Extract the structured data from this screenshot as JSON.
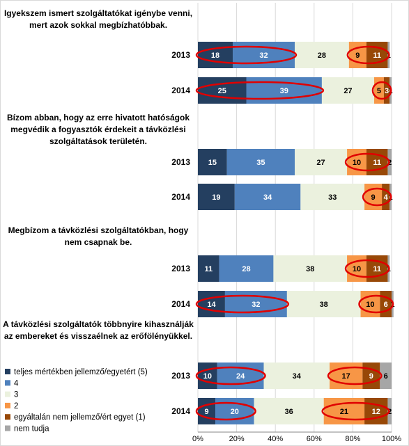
{
  "chart_data": {
    "type": "bar",
    "stacked": true,
    "orientation": "horizontal",
    "xlim": [
      0,
      100
    ],
    "x_ticks": [
      "0%",
      "20%",
      "40%",
      "60%",
      "80%",
      "100%"
    ],
    "grid": true,
    "legend_position": "left-bottom",
    "series": [
      {
        "name": "teljes mértékben jellemző/egyetért (5)",
        "color": "#243F60",
        "label_color": "#ffffff"
      },
      {
        "name": "4",
        "color": "#4F81BD",
        "label_color": "#ffffff"
      },
      {
        "name": "3",
        "color": "#EBF1DE",
        "label_color": "#000000"
      },
      {
        "name": "2",
        "color": "#F79646",
        "label_color": "#000000"
      },
      {
        "name": "egyáltalán nem jellemző/ért egyet (1)",
        "color": "#984807",
        "label_color": "#ffffff"
      },
      {
        "name": "nem tudja",
        "color": "#A6A6A6",
        "label_color": "#000000"
      }
    ],
    "groups": [
      {
        "question": [
          "Igyekszem ismert szolgáltatókat igénybe venni,",
          "mert azok sokkal megbízhatóbbak."
        ],
        "bars": [
          {
            "year": "2013",
            "values": [
              18,
              32,
              28,
              9,
              11,
              1
            ],
            "highlights": [
              [
                0,
                1
              ],
              [
                3,
                4
              ]
            ]
          },
          {
            "year": "2014",
            "values": [
              25,
              39,
              27,
              5,
              3,
              1
            ],
            "highlights": [
              [
                0,
                1
              ],
              [
                3,
                4
              ]
            ]
          }
        ]
      },
      {
        "question": [
          "Bízom abban, hogy az erre hivatott hatóságok",
          "megvédik a fogyasztók érdekeit a távközlési",
          "szolgáltatások területén."
        ],
        "bars": [
          {
            "year": "2013",
            "values": [
              15,
              35,
              27,
              10,
              11,
              2
            ],
            "highlights": [
              [
                3,
                4
              ]
            ]
          },
          {
            "year": "2014",
            "values": [
              19,
              34,
              33,
              9,
              4,
              1
            ],
            "highlights": [
              [
                3,
                4
              ]
            ]
          }
        ]
      },
      {
        "question": [
          "Megbízom a távközlési szolgáltatókban, hogy",
          "nem csapnak be."
        ],
        "bars": [
          {
            "year": "2013",
            "values": [
              11,
              28,
              38,
              10,
              11,
              1
            ],
            "highlights": [
              [
                3,
                4
              ]
            ]
          },
          {
            "year": "2014",
            "values": [
              14,
              32,
              38,
              10,
              6,
              1
            ],
            "highlights": [
              [
                0,
                1
              ],
              [
                3,
                4
              ]
            ]
          }
        ]
      },
      {
        "question": [
          "A távközlési szolgáltatók többnyire kihasználják",
          "az embereket és visszaélnek az erőfölényükkel."
        ],
        "bars": [
          {
            "year": "2013",
            "values": [
              10,
              24,
              34,
              17,
              9,
              6
            ],
            "highlights": [
              [
                0,
                1
              ],
              [
                3,
                4
              ]
            ]
          },
          {
            "year": "2014",
            "values": [
              9,
              20,
              36,
              21,
              12,
              2
            ],
            "highlights": [
              [
                0,
                1
              ],
              [
                3,
                4
              ]
            ]
          }
        ]
      }
    ],
    "highlight_color": "#E00000"
  }
}
